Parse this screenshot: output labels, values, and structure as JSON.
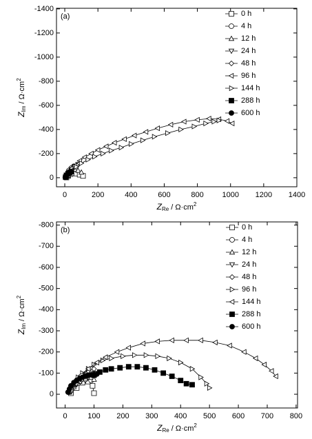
{
  "chart_data": [
    {
      "type": "line",
      "panel_label": "(a)",
      "xlabel": {
        "symbol": "Z",
        "subscript": "Re",
        "unit": "/ Ω·cm",
        "superscript": "2"
      },
      "ylabel": {
        "symbol": "Z",
        "subscript": "Im",
        "unit": "/ Ω·cm",
        "superscript": "2"
      },
      "xlim": [
        -50,
        1400
      ],
      "ylim": [
        75,
        -1405
      ],
      "xticks": [
        0,
        200,
        400,
        600,
        800,
        1000,
        1200,
        1400
      ],
      "yticks": [
        0,
        -200,
        -400,
        -600,
        -800,
        -1000,
        -1200,
        -1400
      ],
      "legend": "upper right",
      "series": [
        {
          "name": "0 h",
          "marker": "square",
          "filled": false,
          "color": "#000000",
          "x": [
            10,
            20,
            35,
            50,
            70,
            90,
            110
          ],
          "y": [
            -2,
            -15,
            -30,
            -38,
            -35,
            -25,
            -15
          ]
        },
        {
          "name": "4 h",
          "marker": "circle",
          "filled": false,
          "color": "#000000",
          "x": [
            5,
            15,
            25,
            40,
            55
          ],
          "y": [
            -5,
            -30,
            -60,
            -80,
            -95
          ]
        },
        {
          "name": "12 h",
          "marker": "triangle-up",
          "filled": false,
          "color": "#000000",
          "x": [
            10,
            25,
            40,
            60,
            80,
            100
          ],
          "y": [
            -10,
            -35,
            -55,
            -70,
            -60,
            -45
          ]
        },
        {
          "name": "24 h",
          "marker": "triangle-down",
          "filled": false,
          "color": "#000000",
          "x": [
            10,
            25,
            40,
            60,
            80
          ],
          "y": [
            -10,
            -40,
            -70,
            -95,
            -110
          ]
        },
        {
          "name": "48 h",
          "marker": "diamond",
          "filled": false,
          "color": "#000000",
          "x": [
            5,
            15,
            30,
            45,
            60,
            75
          ],
          "y": [
            -5,
            -30,
            -55,
            -75,
            -90,
            -100
          ]
        },
        {
          "name": "96 h",
          "marker": "triangle-left",
          "filled": false,
          "color": "#000000",
          "x": [
            20,
            40,
            60,
            90,
            120,
            160,
            200,
            250,
            300,
            360,
            420,
            490,
            560,
            640,
            720,
            800,
            870,
            930,
            980,
            1010
          ],
          "y": [
            -20,
            -60,
            -100,
            -140,
            -170,
            -200,
            -230,
            -260,
            -290,
            -320,
            -350,
            -380,
            -410,
            -440,
            -465,
            -480,
            -490,
            -485,
            -470,
            -450
          ]
        },
        {
          "name": "144 h",
          "marker": "triangle-right",
          "filled": false,
          "color": "#000000",
          "x": [
            20,
            40,
            70,
            100,
            140,
            180,
            230,
            280,
            340,
            400,
            470,
            540,
            620,
            700,
            780,
            850,
            900,
            930
          ],
          "y": [
            -20,
            -55,
            -90,
            -120,
            -150,
            -175,
            -200,
            -225,
            -250,
            -280,
            -310,
            -340,
            -370,
            -400,
            -425,
            -450,
            -465,
            -475
          ]
        },
        {
          "name": "288 h",
          "marker": "square",
          "filled": true,
          "color": "#000000",
          "x": [
            5,
            10,
            20,
            30,
            40
          ],
          "y": [
            -5,
            -20,
            -35,
            -45,
            -50
          ]
        },
        {
          "name": "600 h",
          "marker": "circle",
          "filled": true,
          "color": "#000000",
          "x": [
            3,
            8,
            15,
            22,
            30
          ],
          "y": [
            -3,
            -15,
            -28,
            -38,
            -45
          ]
        }
      ]
    },
    {
      "type": "line",
      "panel_label": "(b)",
      "xlabel": {
        "symbol": "Z",
        "subscript": "Re",
        "unit": "/ Ω·cm",
        "superscript": "2"
      },
      "ylabel": {
        "symbol": "Z",
        "subscript": "Im",
        "unit": "/ Ω·cm",
        "superscript": "2"
      },
      "xlim": [
        -30,
        805
      ],
      "ylim": [
        65,
        -815
      ],
      "xticks": [
        0,
        100,
        200,
        300,
        400,
        500,
        600,
        700,
        800
      ],
      "yticks": [
        0,
        -100,
        -200,
        -300,
        -400,
        -500,
        -600,
        -700,
        -800
      ],
      "legend": "upper right",
      "series": [
        {
          "name": "0 h",
          "marker": "square",
          "filled": false,
          "color": "#000000",
          "x": [
            20,
            40,
            60,
            80,
            95,
            100
          ],
          "y": [
            -5,
            -30,
            -55,
            -60,
            -40,
            -5
          ]
        },
        {
          "name": "4 h",
          "marker": "circle",
          "filled": false,
          "color": "#000000",
          "x": [
            15,
            30,
            50,
            70,
            90
          ],
          "y": [
            -10,
            -40,
            -60,
            -70,
            -65
          ]
        },
        {
          "name": "12 h",
          "marker": "triangle-up",
          "filled": false,
          "color": "#000000",
          "x": [
            15,
            30,
            50,
            70,
            90,
            100
          ],
          "y": [
            -10,
            -35,
            -60,
            -75,
            -80,
            -70
          ]
        },
        {
          "name": "24 h",
          "marker": "triangle-down",
          "filled": false,
          "color": "#000000",
          "x": [
            20,
            40,
            60,
            80,
            100
          ],
          "y": [
            -15,
            -45,
            -70,
            -90,
            -100
          ]
        },
        {
          "name": "48 h",
          "marker": "diamond",
          "filled": false,
          "color": "#000000",
          "x": [
            10,
            25,
            40,
            60,
            80,
            100
          ],
          "y": [
            -10,
            -40,
            -70,
            -95,
            -110,
            -120
          ]
        },
        {
          "name": "96 h",
          "marker": "triangle-right",
          "filled": false,
          "color": "#000000",
          "x": [
            20,
            30,
            45,
            60,
            80,
            100,
            130,
            160,
            200,
            240,
            280,
            320,
            360,
            400,
            440,
            470,
            490,
            500
          ],
          "y": [
            -20,
            -50,
            -80,
            -100,
            -120,
            -140,
            -160,
            -170,
            -180,
            -185,
            -185,
            -180,
            -170,
            -150,
            -120,
            -80,
            -50,
            -30
          ]
        },
        {
          "name": "144 h",
          "marker": "triangle-left",
          "filled": false,
          "color": "#000000",
          "x": [
            20,
            35,
            55,
            80,
            110,
            140,
            180,
            220,
            270,
            320,
            370,
            420,
            470,
            520,
            570,
            620,
            660,
            690,
            715,
            730
          ],
          "y": [
            -20,
            -50,
            -90,
            -120,
            -150,
            -175,
            -200,
            -220,
            -240,
            -250,
            -255,
            -255,
            -255,
            -245,
            -230,
            -200,
            -170,
            -140,
            -110,
            -85
          ]
        },
        {
          "name": "288 h",
          "marker": "square",
          "filled": true,
          "color": "#000000",
          "x": [
            100,
            120,
            140,
            160,
            190,
            220,
            250,
            280,
            310,
            340,
            370,
            400,
            420,
            440
          ],
          "y": [
            -90,
            -105,
            -115,
            -120,
            -125,
            -130,
            -130,
            -125,
            -115,
            -100,
            -85,
            -65,
            -50,
            -45
          ]
        },
        {
          "name": "600 h",
          "marker": "circle",
          "filled": true,
          "color": "#000000",
          "x": [
            10,
            15,
            20,
            30,
            40,
            50,
            60,
            70,
            80,
            90,
            100,
            110
          ],
          "y": [
            -10,
            -25,
            -40,
            -55,
            -65,
            -75,
            -80,
            -85,
            -90,
            -92,
            -95,
            -95
          ]
        }
      ]
    }
  ]
}
